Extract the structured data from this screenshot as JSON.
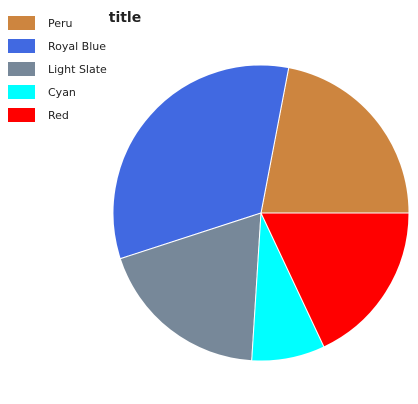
{
  "chart_data": {
    "type": "pie",
    "title": "title",
    "legend_position": "left",
    "start_direction": "right",
    "direction": "counterclockwise",
    "series": [
      {
        "name": "Peru",
        "value": 22.0,
        "color": "#CD853F"
      },
      {
        "name": "Royal Blue",
        "value": 33.0,
        "color": "#4169E1"
      },
      {
        "name": "Light Slate",
        "value": 19.0,
        "color": "#778899"
      },
      {
        "name": "Cyan",
        "value": 8.0,
        "color": "#00FFFF"
      },
      {
        "name": "Red",
        "value": 18.0,
        "color": "#FF0000"
      }
    ]
  }
}
